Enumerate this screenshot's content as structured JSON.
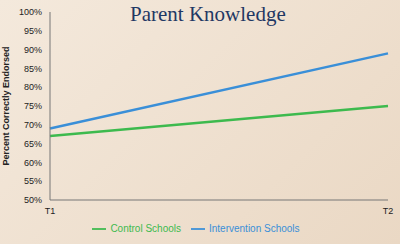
{
  "chart_data": {
    "type": "line",
    "title": "Parent Knowledge",
    "y_label": "Percent Correctly Endorsed",
    "categories": [
      "T1",
      "T2"
    ],
    "series": [
      {
        "name": "Control Schools",
        "color": "#3dba4e",
        "values": [
          67,
          75
        ]
      },
      {
        "name": "Intervention Schools",
        "color": "#3a8fd8",
        "values": [
          69,
          89
        ]
      }
    ],
    "ylim": [
      50,
      100
    ],
    "yticks": [
      {
        "value": 50,
        "label": "50%"
      },
      {
        "value": 55,
        "label": "55%"
      },
      {
        "value": 60,
        "label": "60%"
      },
      {
        "value": 65,
        "label": "65%"
      },
      {
        "value": 70,
        "label": "70%"
      },
      {
        "value": 75,
        "label": "75%"
      },
      {
        "value": 80,
        "label": "80%"
      },
      {
        "value": 85,
        "label": "85%"
      },
      {
        "value": 90,
        "label": "90%"
      },
      {
        "value": 95,
        "label": "95%"
      },
      {
        "value": 100,
        "label": "100%"
      }
    ],
    "grid": false,
    "legend": "bottom",
    "marker": "none",
    "line_style": "solid"
  }
}
